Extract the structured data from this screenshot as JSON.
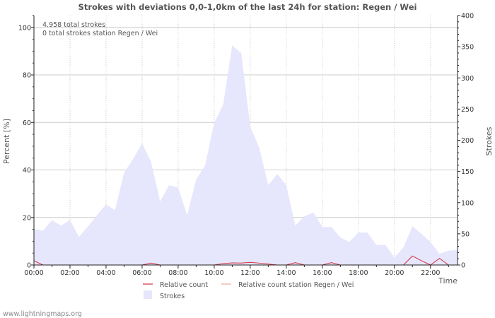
{
  "colors": {
    "strokes_fill": "#e6e6fc",
    "relative": "#d03040",
    "relative_station": "#f0a898",
    "grid": "#cccccc",
    "axis": "#222222"
  },
  "chart_data": {
    "type": "area",
    "title": "Strokes with deviations 0,0-1,0km of the last 24h for station: Regen / Wei",
    "xlabel": "Time",
    "ylabel_left": "Percent   [%]",
    "ylabel_right": "Strokes",
    "xlim_hours": [
      0,
      23.5
    ],
    "ylim_left": [
      0,
      105
    ],
    "ylim_right": [
      0,
      400
    ],
    "x_tick_labels": [
      "00:00",
      "02:00",
      "04:00",
      "06:00",
      "08:00",
      "10:00",
      "12:00",
      "14:00",
      "16:00",
      "18:00",
      "20:00",
      "22:00"
    ],
    "x_tick_hours": [
      0,
      2,
      4,
      6,
      8,
      10,
      12,
      14,
      16,
      18,
      20,
      22
    ],
    "y_left_ticks": [
      0,
      20,
      40,
      60,
      80,
      100
    ],
    "y_right_ticks": [
      0,
      50,
      100,
      150,
      200,
      250,
      300,
      350,
      400
    ],
    "annotations": [
      "4.958 total strokes",
      "0 total strokes station Regen / Wei"
    ],
    "legend": [
      "Relative count",
      "Relative count station Regen / Wei",
      "Strokes"
    ],
    "series": [
      {
        "name": "Strokes",
        "axis": "right",
        "x_hours": [
          0,
          0.5,
          1,
          1.5,
          2,
          2.5,
          3,
          3.5,
          4,
          4.5,
          5,
          5.5,
          6,
          6.5,
          7,
          7.5,
          8,
          8.5,
          9,
          9.5,
          10,
          10.5,
          11,
          11.5,
          12,
          12.5,
          13,
          13.5,
          14,
          14.5,
          15,
          15.5,
          16,
          16.5,
          17,
          17.5,
          18,
          18.5,
          19,
          19.5,
          20,
          20.5,
          21,
          21.5,
          22,
          22.5,
          23,
          23.5
        ],
        "values": [
          58,
          55,
          72,
          63,
          72,
          45,
          62,
          80,
          97,
          88,
          148,
          170,
          195,
          165,
          102,
          128,
          124,
          80,
          137,
          160,
          228,
          257,
          352,
          340,
          222,
          188,
          128,
          146,
          128,
          63,
          78,
          84,
          61,
          61,
          44,
          37,
          52,
          52,
          32,
          32,
          12,
          28,
          62,
          50,
          37,
          18,
          23,
          24
        ]
      },
      {
        "name": "Relative count",
        "axis": "left",
        "x_hours": [
          0,
          0.5,
          1,
          1.5,
          2,
          2.5,
          3,
          3.5,
          4,
          4.5,
          5,
          5.5,
          6,
          6.5,
          7,
          7.5,
          8,
          8.5,
          9,
          9.5,
          10,
          10.5,
          11,
          11.5,
          12,
          12.5,
          13,
          13.5,
          14,
          14.5,
          15,
          15.5,
          16,
          16.5,
          17,
          17.5,
          18,
          18.5,
          19,
          19.5,
          20,
          20.5,
          21,
          21.5,
          22,
          22.5,
          23,
          23.5
        ],
        "values": [
          1.8,
          0,
          0,
          0,
          0,
          0,
          0,
          0,
          0,
          0,
          0,
          0,
          0,
          0.8,
          0,
          0,
          0,
          0,
          0,
          0,
          0,
          0.6,
          0.9,
          0.8,
          1.1,
          0.8,
          0.4,
          0,
          0,
          1.0,
          0,
          0,
          0,
          1.0,
          0,
          0,
          0,
          0,
          0,
          0,
          0,
          0,
          3.8,
          1.8,
          0,
          2.8,
          0,
          0
        ]
      },
      {
        "name": "Relative count station Regen / Wei",
        "axis": "left",
        "x_hours": [
          0,
          23.5
        ],
        "values": [
          0,
          0
        ]
      }
    ]
  },
  "footer": "www.lightningmaps.org"
}
